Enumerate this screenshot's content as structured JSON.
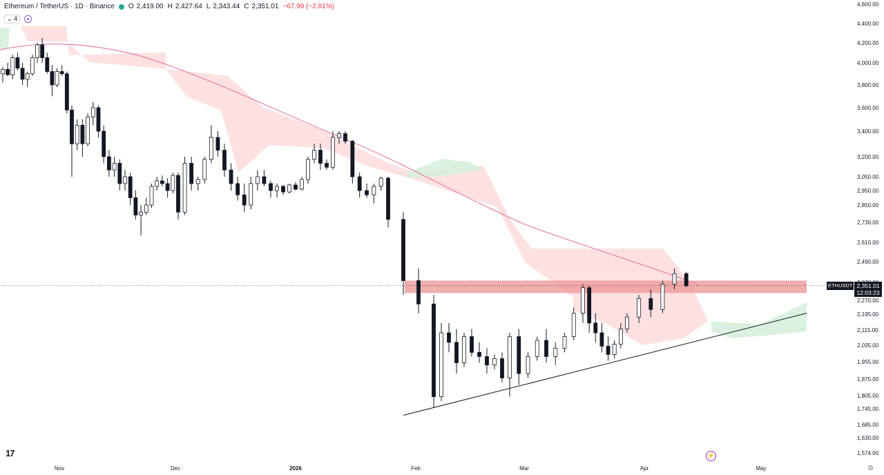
{
  "header": {
    "symbol_line": "Ethereum / TetherUS · 1D · Binance",
    "open_label": "O",
    "open": "2,419.00",
    "high_label": "H",
    "high": "2,427.64",
    "low_label": "L",
    "low": "2,343.44",
    "close_label": "C",
    "close": "2,351.01",
    "change": "−67.99 (−2.81%)",
    "indicator_count": "4"
  },
  "price_tag": {
    "symbol": "ETHUSDT",
    "price": "2,351.01",
    "countdown": "12:03:23"
  },
  "icons": {
    "logo": "tradingview-logo-icon",
    "flash": "lightning-icon",
    "settings": "gear-icon"
  },
  "logo_text": "17",
  "colors": {
    "up": "#131722",
    "down": "#131722",
    "ma": "#e57fa0",
    "cloud_bear": "#fcd7d7",
    "cloud_bull": "#d7f0dc",
    "zone": "#ef9a9a"
  },
  "chart_data": {
    "type": "candlestick",
    "y_scale": "log",
    "ylim": [
      1560,
      4620
    ],
    "y_ticks": [
      "4,600.00",
      "4,400.00",
      "4,200.00",
      "4,000.00",
      "3,800.00",
      "3,600.00",
      "3,400.00",
      "3,200.00",
      "3,050.00",
      "2,950.00",
      "2,850.00",
      "2,730.00",
      "2,610.00",
      "2,490.00",
      "2,370.00",
      "2,270.00",
      "2,195.00",
      "2,115.00",
      "2,035.00",
      "1,955.00",
      "1,875.00",
      "1,805.00",
      "1,745.00",
      "1,685.00",
      "1,630.00",
      "1,574.00"
    ],
    "x_ticks": [
      "Nov",
      "Dec",
      "2026",
      "Feb",
      "Mar",
      "Apr",
      "May"
    ],
    "resistance_zone": [
      2310,
      2380
    ],
    "ascending_trendline": [
      [
        0,
        1720
      ],
      [
        1,
        2200
      ]
    ],
    "candles": [
      [
        3900,
        3960,
        3820,
        3940
      ],
      [
        3940,
        4000,
        3880,
        3890
      ],
      [
        3890,
        4080,
        3850,
        4050
      ],
      [
        4050,
        4100,
        3930,
        3950
      ],
      [
        3950,
        4000,
        3800,
        3850
      ],
      [
        3850,
        3920,
        3780,
        3900
      ],
      [
        3900,
        4080,
        3880,
        4050
      ],
      [
        4050,
        4200,
        4000,
        4180
      ],
      [
        4180,
        4250,
        4000,
        4050
      ],
      [
        4050,
        4100,
        3900,
        3920
      ],
      [
        3920,
        3980,
        3700,
        3800
      ],
      [
        3800,
        3950,
        3780,
        3920
      ],
      [
        3920,
        3980,
        3880,
        3900
      ],
      [
        3900,
        3920,
        3550,
        3580
      ],
      [
        3580,
        3620,
        3050,
        3300
      ],
      [
        3300,
        3500,
        3250,
        3450
      ],
      [
        3450,
        3500,
        3200,
        3300
      ],
      [
        3300,
        3550,
        3280,
        3520
      ],
      [
        3520,
        3650,
        3450,
        3600
      ],
      [
        3600,
        3620,
        3350,
        3400
      ],
      [
        3400,
        3450,
        3150,
        3200
      ],
      [
        3200,
        3250,
        3050,
        3100
      ],
      [
        3100,
        3200,
        3050,
        3150
      ],
      [
        3150,
        3180,
        2950,
        3000
      ],
      [
        3000,
        3100,
        2950,
        3050
      ],
      [
        3050,
        3080,
        2850,
        2900
      ],
      [
        2900,
        2950,
        2750,
        2780
      ],
      [
        2780,
        2850,
        2650,
        2800
      ],
      [
        2800,
        2900,
        2780,
        2850
      ],
      [
        2850,
        3000,
        2830,
        2980
      ],
      [
        2980,
        3050,
        2950,
        3020
      ],
      [
        3020,
        3060,
        2980,
        3000
      ],
      [
        3000,
        3040,
        2900,
        2950
      ],
      [
        2950,
        3080,
        2930,
        3060
      ],
      [
        3060,
        3080,
        2750,
        2800
      ],
      [
        2800,
        3200,
        2780,
        3150
      ],
      [
        3150,
        3200,
        2950,
        3000
      ],
      [
        3000,
        3050,
        2950,
        3030
      ],
      [
        3030,
        3200,
        3000,
        3180
      ],
      [
        3180,
        3450,
        3150,
        3350
      ],
      [
        3350,
        3400,
        3200,
        3250
      ],
      [
        3250,
        3300,
        3050,
        3100
      ],
      [
        3100,
        3150,
        2950,
        3000
      ],
      [
        3000,
        3050,
        2880,
        2920
      ],
      [
        2920,
        3000,
        2800,
        2850
      ],
      [
        2850,
        3050,
        2820,
        3000
      ],
      [
        3000,
        3100,
        2950,
        3050
      ],
      [
        3050,
        3100,
        2980,
        3000
      ],
      [
        3000,
        3020,
        2900,
        2950
      ],
      [
        2950,
        3000,
        2900,
        2980
      ],
      [
        2980,
        2990,
        2920,
        2940
      ],
      [
        2940,
        3000,
        2930,
        2990
      ],
      [
        2990,
        3010,
        2950,
        2960
      ],
      [
        2960,
        3050,
        2950,
        3030
      ],
      [
        3030,
        3200,
        3000,
        3180
      ],
      [
        3180,
        3300,
        3150,
        3250
      ],
      [
        3250,
        3300,
        3100,
        3150
      ],
      [
        3150,
        3180,
        3100,
        3120
      ],
      [
        3120,
        3400,
        3100,
        3350
      ],
      [
        3350,
        3400,
        3300,
        3380
      ],
      [
        3380,
        3400,
        3300,
        3320
      ],
      [
        3320,
        3330,
        3000,
        3050
      ],
      [
        3050,
        3080,
        2900,
        2950
      ],
      [
        2950,
        3000,
        2900,
        2920
      ],
      [
        2920,
        3000,
        2860,
        2980
      ],
      [
        2980,
        3050,
        2950,
        3040
      ],
      [
        3040,
        3050,
        2700,
        2750
      ],
      [
        2750,
        2800,
        2300,
        2380
      ],
      [
        2380,
        2450,
        2200,
        2250
      ],
      [
        2250,
        2300,
        1750,
        1800
      ],
      [
        1800,
        2150,
        1780,
        2100
      ],
      [
        2100,
        2150,
        2000,
        2050
      ],
      [
        2050,
        2120,
        1900,
        1950
      ],
      [
        1950,
        2100,
        1930,
        2080
      ],
      [
        2080,
        2120,
        1980,
        2000
      ],
      [
        2000,
        2050,
        1950,
        1980
      ],
      [
        1980,
        2020,
        1900,
        1940
      ],
      [
        1940,
        1990,
        1920,
        1970
      ],
      [
        1970,
        2000,
        1860,
        1880
      ],
      [
        1880,
        2100,
        1800,
        2080
      ],
      [
        2080,
        2120,
        1850,
        1900
      ],
      [
        1900,
        2000,
        1880,
        1980
      ],
      [
        1980,
        2080,
        1960,
        2060
      ],
      [
        2060,
        2120,
        1950,
        1980
      ],
      [
        1980,
        2050,
        1940,
        2020
      ],
      [
        2020,
        2100,
        2000,
        2080
      ],
      [
        2080,
        2230,
        2060,
        2200
      ],
      [
        2200,
        2360,
        2150,
        2340
      ],
      [
        2340,
        2350,
        2100,
        2150
      ],
      [
        2150,
        2200,
        2050,
        2100
      ],
      [
        2100,
        2150,
        2000,
        2030
      ],
      [
        2030,
        2080,
        1960,
        1990
      ],
      [
        1990,
        2060,
        1970,
        2040
      ],
      [
        2040,
        2150,
        2020,
        2120
      ],
      [
        2120,
        2200,
        2100,
        2180
      ],
      [
        2180,
        2300,
        2150,
        2280
      ],
      [
        2280,
        2330,
        2180,
        2220
      ],
      [
        2220,
        2380,
        2200,
        2360
      ],
      [
        2360,
        2450,
        2330,
        2420
      ],
      [
        2420,
        2430,
        2343,
        2351
      ]
    ]
  }
}
